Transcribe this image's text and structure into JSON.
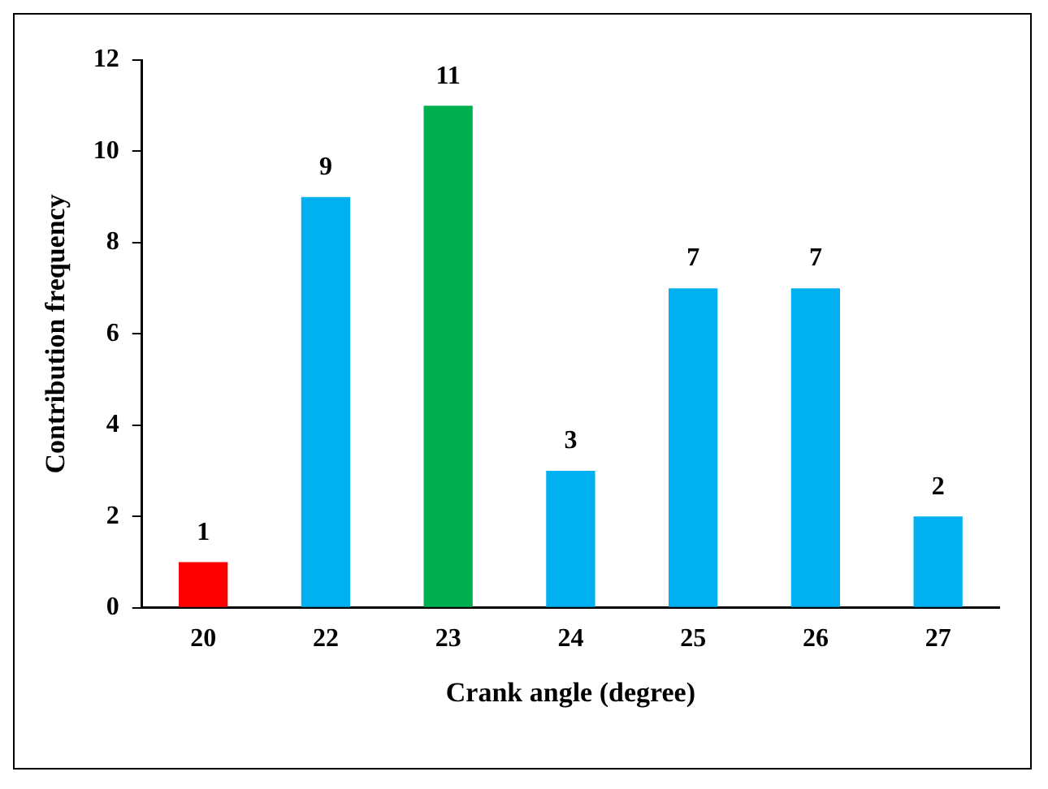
{
  "chart_data": {
    "type": "bar",
    "xlabel": "Crank angle (degree)",
    "ylabel": "Contribution frequency",
    "categories": [
      "20",
      "22",
      "23",
      "24",
      "25",
      "26",
      "27"
    ],
    "values": [
      1,
      9,
      11,
      3,
      7,
      7,
      2
    ],
    "colors": [
      "#ff0000",
      "#00b0f0",
      "#00b050",
      "#00b0f0",
      "#00b0f0",
      "#00b0f0",
      "#00b0f0"
    ],
    "ylim": [
      0,
      12
    ],
    "yticks": [
      0,
      2,
      4,
      6,
      8,
      10,
      12
    ],
    "grid": false,
    "legend": false,
    "data_labels": true
  }
}
